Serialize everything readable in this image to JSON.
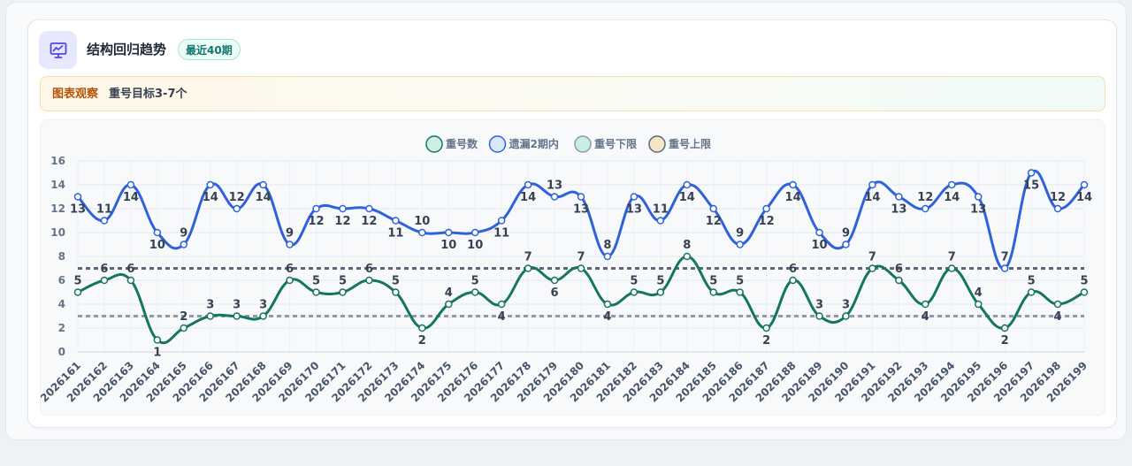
{
  "header": {
    "title": "结构回归趋势",
    "badge": "最近40期",
    "icon": "chart-presentation-icon"
  },
  "notice": {
    "label": "图表观察",
    "text": "重号目标3-7个"
  },
  "colors": {
    "repeat": "#15755f",
    "miss2": "#2f62d9",
    "repeat_low": "#8f98b3",
    "repeat_high": "#5d6580",
    "icon_accent": "#4f46e5"
  },
  "chart_data": {
    "type": "line",
    "categories": [
      "2026161",
      "2026162",
      "2026163",
      "2026164",
      "2026165",
      "2026166",
      "2026167",
      "2026168",
      "2026169",
      "2026170",
      "2026171",
      "2026172",
      "2026173",
      "2026174",
      "2026175",
      "2026176",
      "2026177",
      "2026178",
      "2026179",
      "2026180",
      "2026181",
      "2026182",
      "2026183",
      "2026184",
      "2026185",
      "2026186",
      "2026187",
      "2026188",
      "2026189",
      "2026190",
      "2026191",
      "2026192",
      "2026193",
      "2026194",
      "2026195",
      "2026196",
      "2026197",
      "2026198",
      "2026199"
    ],
    "series": [
      {
        "name": "重号数",
        "color": "#15755f",
        "values": [
          5,
          6,
          6,
          1,
          2,
          3,
          3,
          3,
          6,
          5,
          5,
          6,
          5,
          2,
          4,
          5,
          4,
          7,
          6,
          7,
          4,
          5,
          5,
          8,
          5,
          5,
          2,
          6,
          3,
          3,
          7,
          6,
          4,
          7,
          4,
          2,
          5,
          4,
          5
        ]
      },
      {
        "name": "遗漏2期内",
        "color": "#2f62d9",
        "values": [
          13,
          11,
          14,
          10,
          9,
          14,
          12,
          14,
          9,
          12,
          12,
          12,
          11,
          10,
          10,
          10,
          11,
          14,
          13,
          13,
          8,
          13,
          11,
          14,
          12,
          9,
          12,
          14,
          10,
          9,
          14,
          13,
          12,
          14,
          13,
          7,
          15,
          12,
          14
        ]
      },
      {
        "name": "重号下限",
        "color": "#8f98b3",
        "value": 3,
        "style": "dashed"
      },
      {
        "name": "重号上限",
        "color": "#5d6580",
        "value": 7,
        "style": "dashed"
      }
    ],
    "legend": [
      {
        "name": "重号数",
        "fill": "#cfeee3",
        "stroke": "#15755f"
      },
      {
        "name": "遗漏2期内",
        "fill": "#dbe7fb",
        "stroke": "#2f62d9"
      },
      {
        "name": "重号下限",
        "fill": "#c8ede2",
        "stroke": "#8f98b3"
      },
      {
        "name": "重号上限",
        "fill": "#f7e6c6",
        "stroke": "#5d6580"
      }
    ],
    "ylim": [
      0,
      16
    ],
    "yticks": [
      0,
      2,
      4,
      6,
      8,
      10,
      12,
      14,
      16
    ],
    "grid": true,
    "legend_position": "top-center",
    "data_labels": true
  }
}
